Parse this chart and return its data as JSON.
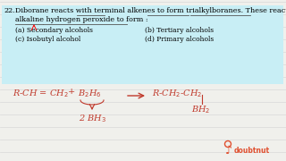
{
  "bg_color": "#f0f0ec",
  "question_box_color": "#c8eef5",
  "reaction_color": "#c0392b",
  "doubtnut_color": "#e05030",
  "grid_line_color": "#d8d8d8",
  "line1": "Diborane reacts with terminal alkenes to form trialkylboranes. These react with",
  "line2": "alkaline hydrogen peroxide to form :",
  "opt_a": "(a) Secondary alcohols",
  "opt_b": "(b) Tertiary alcohols",
  "opt_c": "(c) Isobutyl alcohol",
  "opt_d": "(d) Primary alcohols",
  "q_num": "22.",
  "fsize_q": 5.8,
  "fsize_opt": 5.5,
  "fsize_rxn": 7.0,
  "fsize_logo": 5.5
}
